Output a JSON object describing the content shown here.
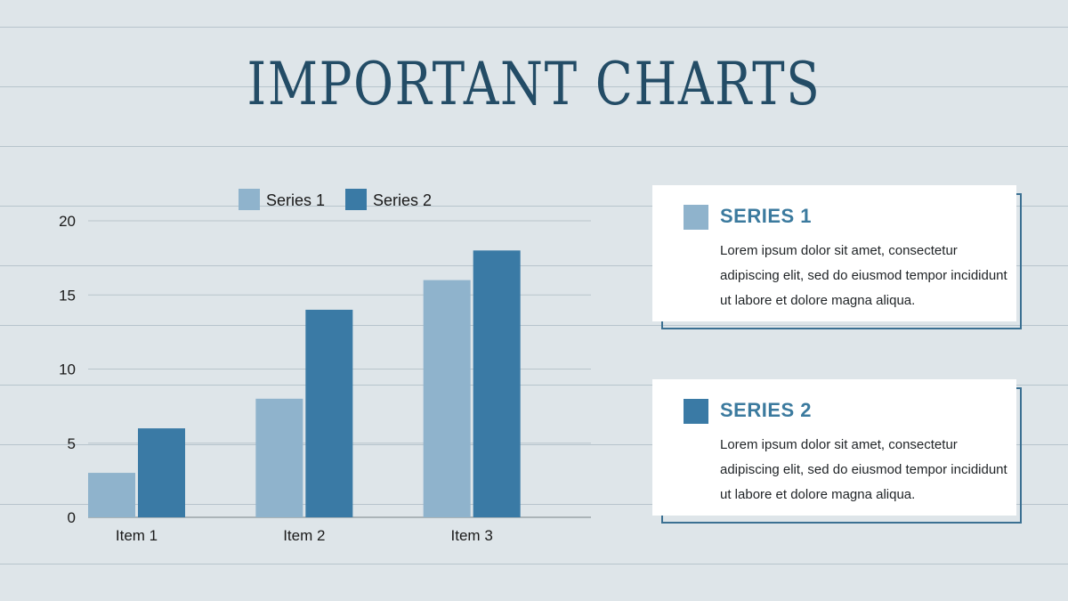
{
  "title": "IMPORTANT CHARTS",
  "colors": {
    "background": "#dee5e9",
    "series1": "#8fb3cc",
    "series2": "#3a7aa5",
    "title": "#234c66",
    "card_title": "#3b7a9e"
  },
  "chart_data": {
    "type": "bar",
    "categories": [
      "Item 1",
      "Item 2",
      "Item 3"
    ],
    "series": [
      {
        "name": "Series 1",
        "values": [
          3,
          8,
          16
        ]
      },
      {
        "name": "Series 2",
        "values": [
          6,
          14,
          18
        ]
      }
    ],
    "ylim": [
      0,
      20
    ],
    "yticks": [
      0,
      5,
      10,
      15,
      20
    ],
    "grid": true,
    "legend": "top"
  },
  "cards": [
    {
      "title": "SERIES 1",
      "text": "Lorem ipsum dolor sit amet, consectetur adipiscing elit, sed do eiusmod tempor incididunt ut labore et dolore magna aliqua."
    },
    {
      "title": "SERIES 2",
      "text": "Lorem ipsum dolor sit amet, consectetur adipiscing elit, sed do eiusmod tempor incididunt ut labore et dolore magna aliqua."
    }
  ]
}
